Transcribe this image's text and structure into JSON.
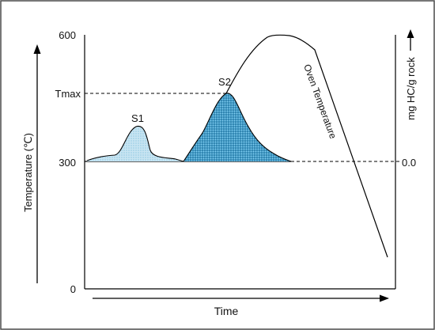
{
  "frame": {
    "border_color": "#4a4a4a",
    "background": "#ffffff"
  },
  "axes": {
    "x_label": "Time",
    "y_left_label": "Temperature (℃)",
    "y_right_label": "mg HC/g rock",
    "ticks_left": {
      "t600": "600",
      "tmax": "Tmax",
      "t300": "300",
      "t0": "0"
    },
    "tick_right": "0.0"
  },
  "peaks": {
    "s1_label": "S1",
    "s2_label": "S2",
    "s1_fill": "#b9dcee",
    "s2_fill": "#3e9fce",
    "stipple_color": "#1d6f99"
  },
  "oven_curve_label": "Oven Temperature",
  "icons": {
    "y_left_arrow": "arrow-up-icon",
    "y_right_arrow": "arrow-up-icon",
    "x_arrow": "arrow-right-icon"
  }
}
